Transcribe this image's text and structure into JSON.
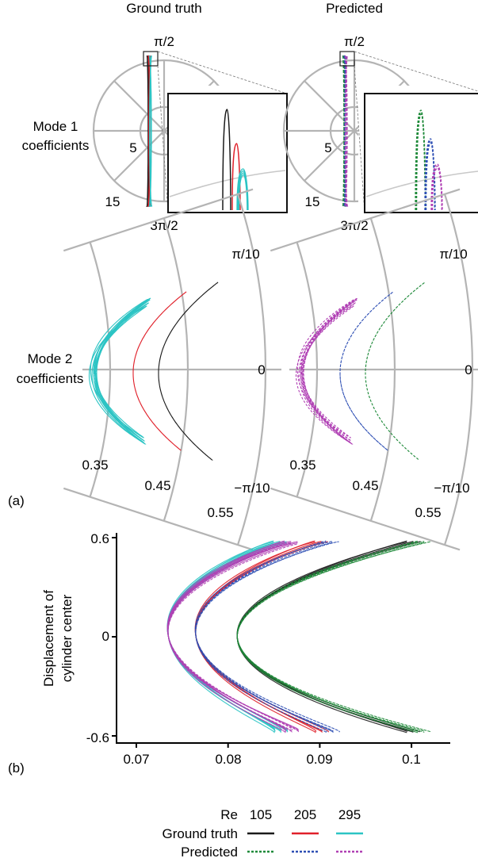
{
  "panel_a": {
    "label": "(a)",
    "col_titles": [
      "Ground truth",
      "Predicted"
    ],
    "row_labels": [
      [
        "Mode 1",
        "coefficients"
      ],
      [
        "Mode 2",
        "coefficients"
      ]
    ],
    "mode1_angles": [
      "π/2",
      "3π/2"
    ],
    "mode1_radii": [
      "5",
      "15"
    ],
    "mode2_angles": [
      "π/10",
      "0",
      "−π/10"
    ],
    "mode2_radii": [
      "0.35",
      "0.45",
      "0.55"
    ]
  },
  "panel_b": {
    "label": "(b)",
    "ylabel": [
      "Displacement of",
      "cylinder center"
    ],
    "yticks": [
      "0.6",
      "0",
      "-0.6"
    ],
    "xticks": [
      "0.07",
      "0.08",
      "0.09",
      "0.1"
    ]
  },
  "legend": {
    "re_label": "Re",
    "re_values": [
      "105",
      "205",
      "295"
    ],
    "rows": [
      {
        "label": "Ground truth",
        "dashed": false,
        "colors": [
          "#1a1a1a",
          "#e0202a",
          "#2cc4c4"
        ]
      },
      {
        "label": "Predicted",
        "dashed": true,
        "colors": [
          "#1f8a3a",
          "#2e4fb4",
          "#b040b4"
        ]
      }
    ]
  },
  "colors": {
    "truth": {
      "105": "#1a1a1a",
      "205": "#e0202a",
      "295": "#2cc4c4"
    },
    "pred": {
      "105": "#1f8a3a",
      "205": "#2e4fb4",
      "295": "#b040b4"
    },
    "grid": "#b4b4b4"
  },
  "chart_data": [
    {
      "type": "scatter",
      "panel": "a-mode1",
      "coordinate": "polar",
      "angle_ticks": [
        "π/2",
        "3π/2"
      ],
      "radius_ticks": [
        5,
        15
      ],
      "series": [
        {
          "name": "Ground truth Re 105",
          "trajectory": "narrow vertical loop near angle π/2, inner-most"
        },
        {
          "name": "Ground truth Re 205"
        },
        {
          "name": "Ground truth Re 295"
        },
        {
          "name": "Predicted Re 105"
        },
        {
          "name": "Predicted Re 205"
        },
        {
          "name": "Predicted Re 295"
        }
      ]
    },
    {
      "type": "line",
      "panel": "a-mode2",
      "coordinate": "polar",
      "angle_range": [
        -0.314,
        0.314
      ],
      "radius_range": [
        0.35,
        0.55
      ],
      "series": [
        {
          "name": "Re 105",
          "r_range": [
            0.41,
            0.55
          ]
        },
        {
          "name": "Re 205",
          "r_range": [
            0.39,
            0.49
          ]
        },
        {
          "name": "Re 295",
          "r_range": [
            0.37,
            0.47
          ]
        }
      ]
    },
    {
      "type": "line",
      "panel": "b",
      "xlim": [
        0.067,
        0.104
      ],
      "ylim": [
        -0.6,
        0.6
      ],
      "x_ticks": [
        0.07,
        0.08,
        0.09,
        0.1
      ],
      "y_ticks": [
        -0.6,
        0,
        0.6
      ],
      "series": [
        {
          "name": "Re 105",
          "x_at_y0": 0.081,
          "x_at_extremes": 0.099
        },
        {
          "name": "Re 205",
          "x_at_y0": 0.0765,
          "x_at_extremes": 0.089
        },
        {
          "name": "Re 295",
          "x_at_y0": 0.0735,
          "x_at_extremes": 0.085
        }
      ]
    }
  ]
}
